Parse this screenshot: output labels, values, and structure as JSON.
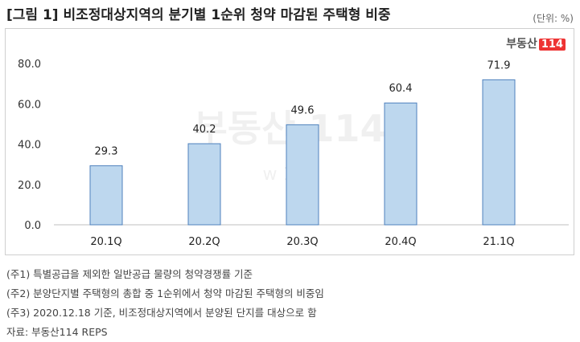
{
  "title": "[그림 1] 비조정대상지역의 분기별 1순위 청약 마감된 주택형 비중",
  "unit_label": "(단위: %)",
  "logo": {
    "text": "부동산",
    "number": "114"
  },
  "watermark": {
    "text": "부동산",
    "number": "114",
    "url": "w   114"
  },
  "chart_data": {
    "type": "bar",
    "categories": [
      "20.1Q",
      "20.2Q",
      "20.3Q",
      "20.4Q",
      "21.1Q"
    ],
    "values": [
      29.3,
      40.2,
      49.6,
      60.4,
      71.9
    ],
    "value_labels": [
      "29.3",
      "40.2",
      "49.6",
      "60.4",
      "71.9"
    ],
    "ylim": [
      0,
      80
    ],
    "yticks": [
      "0.0",
      "20.0",
      "40.0",
      "60.0",
      "80.0"
    ],
    "bar_color": "#bdd7ee",
    "bar_border": "#4f81bd",
    "grid": false
  },
  "notes": [
    "(주1) 특별공급을 제외한 일반공급 물량의 청약경쟁률 기준",
    "(주2) 분양단지별 주택형의 총합 중 1순위에서 청약 마감된 주택형의 비중임",
    "(주3) 2020.12.18 기준, 비조정대상지역에서 분양된 단지를 대상으로 함",
    "자료: 부동산114 REPS"
  ]
}
